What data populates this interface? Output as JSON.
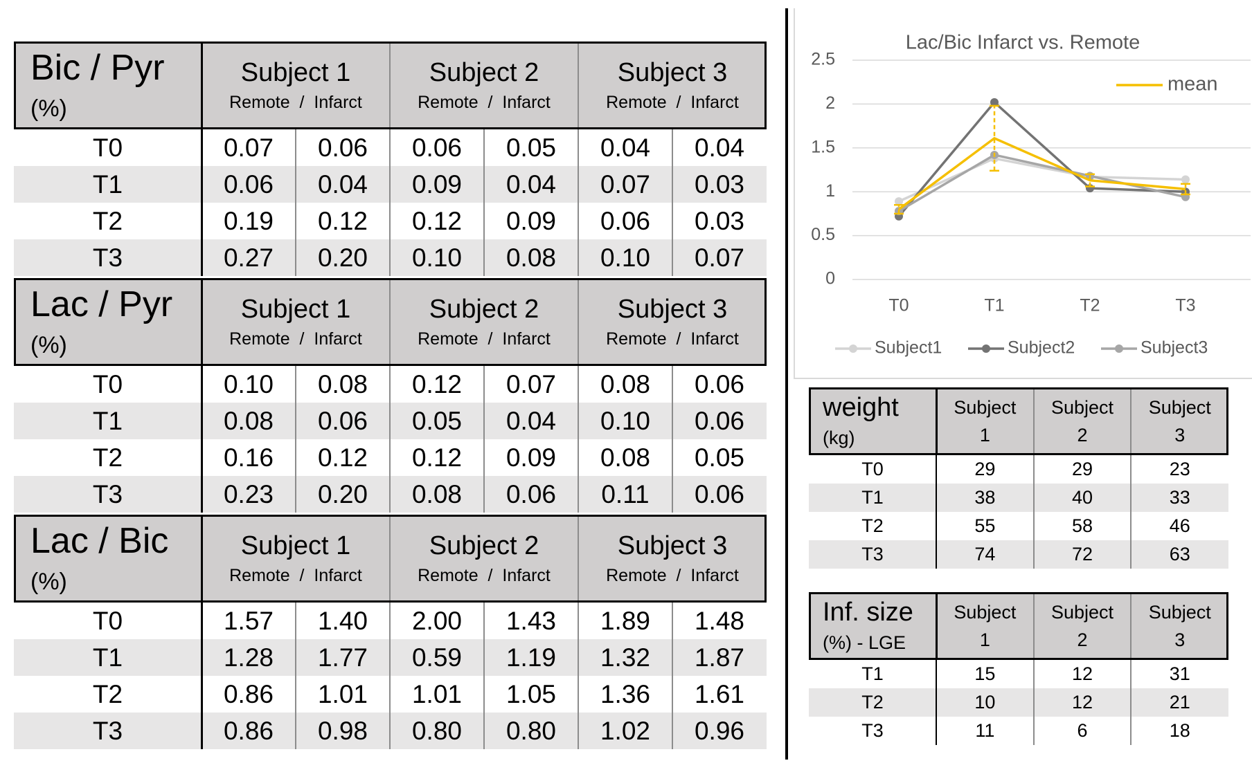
{
  "tables": [
    {
      "title": "Bic / Pyr",
      "unit": "(%)",
      "columns": [
        {
          "subject": "Subject 1",
          "sub": "Remote  /  Infarct"
        },
        {
          "subject": "Subject 2",
          "sub": "Remote  /  Infarct"
        },
        {
          "subject": "Subject 3",
          "sub": "Remote  /  Infarct"
        }
      ],
      "rows": [
        {
          "label": "T0",
          "values": [
            "0.07",
            "0.06",
            "0.06",
            "0.05",
            "0.04",
            "0.04"
          ]
        },
        {
          "label": "T1",
          "values": [
            "0.06",
            "0.04",
            "0.09",
            "0.04",
            "0.07",
            "0.03"
          ]
        },
        {
          "label": "T2",
          "values": [
            "0.19",
            "0.12",
            "0.12",
            "0.09",
            "0.06",
            "0.03"
          ]
        },
        {
          "label": "T3",
          "values": [
            "0.27",
            "0.20",
            "0.10",
            "0.08",
            "0.10",
            "0.07"
          ]
        }
      ]
    },
    {
      "title": "Lac / Pyr",
      "unit": "(%)",
      "columns": [
        {
          "subject": "Subject 1",
          "sub": "Remote  /  Infarct"
        },
        {
          "subject": "Subject 2",
          "sub": "Remote  /  Infarct"
        },
        {
          "subject": "Subject 3",
          "sub": "Remote  /  Infarct"
        }
      ],
      "rows": [
        {
          "label": "T0",
          "values": [
            "0.10",
            "0.08",
            "0.12",
            "0.07",
            "0.08",
            "0.06"
          ]
        },
        {
          "label": "T1",
          "values": [
            "0.08",
            "0.06",
            "0.05",
            "0.04",
            "0.10",
            "0.06"
          ]
        },
        {
          "label": "T2",
          "values": [
            "0.16",
            "0.12",
            "0.12",
            "0.09",
            "0.08",
            "0.05"
          ]
        },
        {
          "label": "T3",
          "values": [
            "0.23",
            "0.20",
            "0.08",
            "0.06",
            "0.11",
            "0.06"
          ]
        }
      ]
    },
    {
      "title": "Lac / Bic",
      "unit": "(%)",
      "columns": [
        {
          "subject": "Subject 1",
          "sub": "Remote  /  Infarct"
        },
        {
          "subject": "Subject 2",
          "sub": "Remote  /  Infarct"
        },
        {
          "subject": "Subject 3",
          "sub": "Remote  /  Infarct"
        }
      ],
      "rows": [
        {
          "label": "T0",
          "values": [
            "1.57",
            "1.40",
            "2.00",
            "1.43",
            "1.89",
            "1.48"
          ]
        },
        {
          "label": "T1",
          "values": [
            "1.28",
            "1.77",
            "0.59",
            "1.19",
            "1.32",
            "1.87"
          ]
        },
        {
          "label": "T2",
          "values": [
            "0.86",
            "1.01",
            "1.01",
            "1.05",
            "1.36",
            "1.61"
          ]
        },
        {
          "label": "T3",
          "values": [
            "0.86",
            "0.98",
            "0.80",
            "0.80",
            "1.02",
            "0.96"
          ]
        }
      ]
    }
  ],
  "chart_data": {
    "type": "line",
    "title": "Lac/Bic Infarct vs. Remote",
    "categories": [
      "T0",
      "T1",
      "T2",
      "T3"
    ],
    "ylim": [
      0,
      2.5
    ],
    "yticks": [
      0,
      0.5,
      1,
      1.5,
      2,
      2.5
    ],
    "grid": true,
    "series": [
      {
        "name": "Subject1",
        "color": "#d4d4d4",
        "marker": true,
        "values": [
          0.89,
          1.38,
          1.17,
          1.14
        ]
      },
      {
        "name": "Subject2",
        "color": "#737373",
        "marker": true,
        "values": [
          0.72,
          2.02,
          1.04,
          1.0
        ]
      },
      {
        "name": "Subject3",
        "color": "#a6a6a6",
        "marker": true,
        "values": [
          0.78,
          1.42,
          1.18,
          0.94
        ]
      },
      {
        "name": "mean",
        "color": "#f5bf00",
        "marker": false,
        "values": [
          0.8,
          1.61,
          1.13,
          1.03
        ],
        "errors": [
          0.05,
          0.37,
          0.07,
          0.06
        ]
      }
    ]
  },
  "small_tables": [
    {
      "title": "weight",
      "unit": "(kg)",
      "columns": [
        "Subject 1",
        "Subject 2",
        "Subject 3"
      ],
      "rows": [
        {
          "label": "T0",
          "values": [
            29,
            29,
            23
          ]
        },
        {
          "label": "T1",
          "values": [
            38,
            40,
            33
          ]
        },
        {
          "label": "T2",
          "values": [
            55,
            58,
            46
          ]
        },
        {
          "label": "T3",
          "values": [
            74,
            72,
            63
          ]
        }
      ]
    },
    {
      "title": "Inf. size",
      "unit": "(%) - LGE",
      "columns": [
        "Subject 1",
        "Subject 2",
        "Subject 3"
      ],
      "rows": [
        {
          "label": "T1",
          "values": [
            15,
            12,
            31
          ]
        },
        {
          "label": "T2",
          "values": [
            10,
            12,
            21
          ]
        },
        {
          "label": "T3",
          "values": [
            11,
            6,
            18
          ]
        }
      ]
    }
  ]
}
